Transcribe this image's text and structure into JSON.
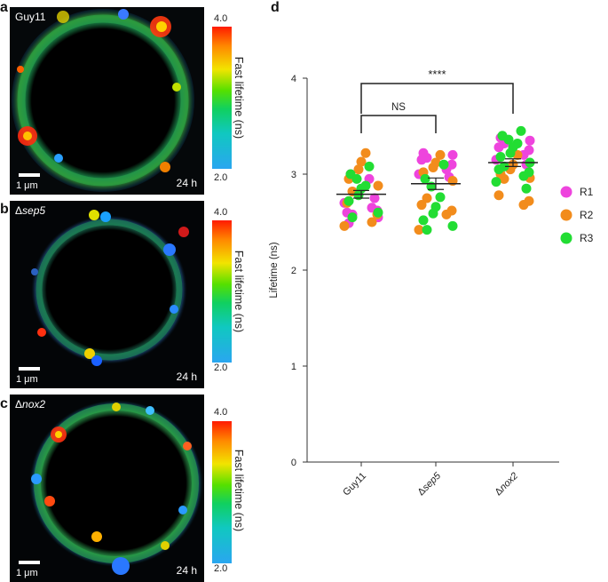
{
  "panels": {
    "a": {
      "letter": "a",
      "strain": "Guy11",
      "strain_italic": "",
      "time": "24 h",
      "scale": "1 μm",
      "colorbar": {
        "max": "4.0",
        "min": "2.0",
        "title": "Fast lifetime (ns)"
      }
    },
    "b": {
      "letter": "b",
      "strain": "Δ",
      "strain_italic": "sep5",
      "time": "24 h",
      "scale": "1 μm",
      "colorbar": {
        "max": "4.0",
        "min": "2.0",
        "title": "Fast lifetime (ns)"
      }
    },
    "c": {
      "letter": "c",
      "strain": "Δ",
      "strain_italic": "nox2",
      "time": "24 h",
      "scale": "1 μm",
      "colorbar": {
        "max": "4.0",
        "min": "2.0",
        "title": "Fast lifetime (ns)"
      }
    },
    "d": {
      "letter": "d"
    }
  },
  "colors": {
    "R1": "#ee44dd",
    "R2": "#f28c1c",
    "R3": "#22dd33"
  },
  "chart_data": {
    "type": "scatter",
    "ylabel": "Lifetime (ns)",
    "xlabel": "",
    "ylim": [
      0,
      4
    ],
    "yticks": [
      "0",
      "1",
      "2",
      "3",
      "4"
    ],
    "categories": [
      "Guy11",
      "Δsep5",
      "Δnox2"
    ],
    "legend": [
      "R1",
      "R2",
      "R3"
    ],
    "legend_position": "right",
    "means": [
      2.79,
      2.9,
      3.12
    ],
    "sem": [
      0.04,
      0.06,
      0.04
    ],
    "significance": [
      {
        "from": "Guy11",
        "to": "Δnox2",
        "label": "****"
      },
      {
        "from": "Guy11",
        "to": "Δsep5",
        "label": "NS"
      }
    ],
    "series": [
      {
        "name": "R1",
        "values": [
          [
            2.49,
            2.55,
            2.58,
            2.6,
            2.62,
            2.65,
            2.7,
            2.75,
            2.95,
            3.0
          ],
          [
            3.22,
            3.2,
            3.17,
            3.15,
            3.1,
            3.05,
            3.0,
            2.97
          ],
          [
            3.38,
            3.35,
            3.32,
            3.28,
            3.25,
            3.2,
            3.15,
            3.1
          ]
        ]
      },
      {
        "name": "R2",
        "values": [
          [
            3.22,
            3.13,
            3.05,
            2.95,
            2.88,
            2.82,
            2.7,
            2.58,
            2.5,
            2.46
          ],
          [
            3.2,
            3.12,
            3.07,
            3.02,
            2.93,
            2.75,
            2.68,
            2.62,
            2.58,
            2.42
          ],
          [
            3.2,
            3.1,
            3.05,
            3.0,
            2.96,
            2.95,
            2.78,
            2.72,
            2.68
          ]
        ]
      },
      {
        "name": "R3",
        "values": [
          [
            3.08,
            3.0,
            2.95,
            2.88,
            2.85,
            2.78,
            2.72,
            2.6,
            2.55
          ],
          [
            3.1,
            2.95,
            2.87,
            2.76,
            2.66,
            2.59,
            2.52,
            2.46,
            2.42
          ],
          [
            3.45,
            3.4,
            3.36,
            3.32,
            3.28,
            3.22,
            3.18,
            3.12,
            3.08,
            3.05,
            3.02,
            2.98,
            2.92,
            2.85
          ]
        ]
      }
    ]
  }
}
